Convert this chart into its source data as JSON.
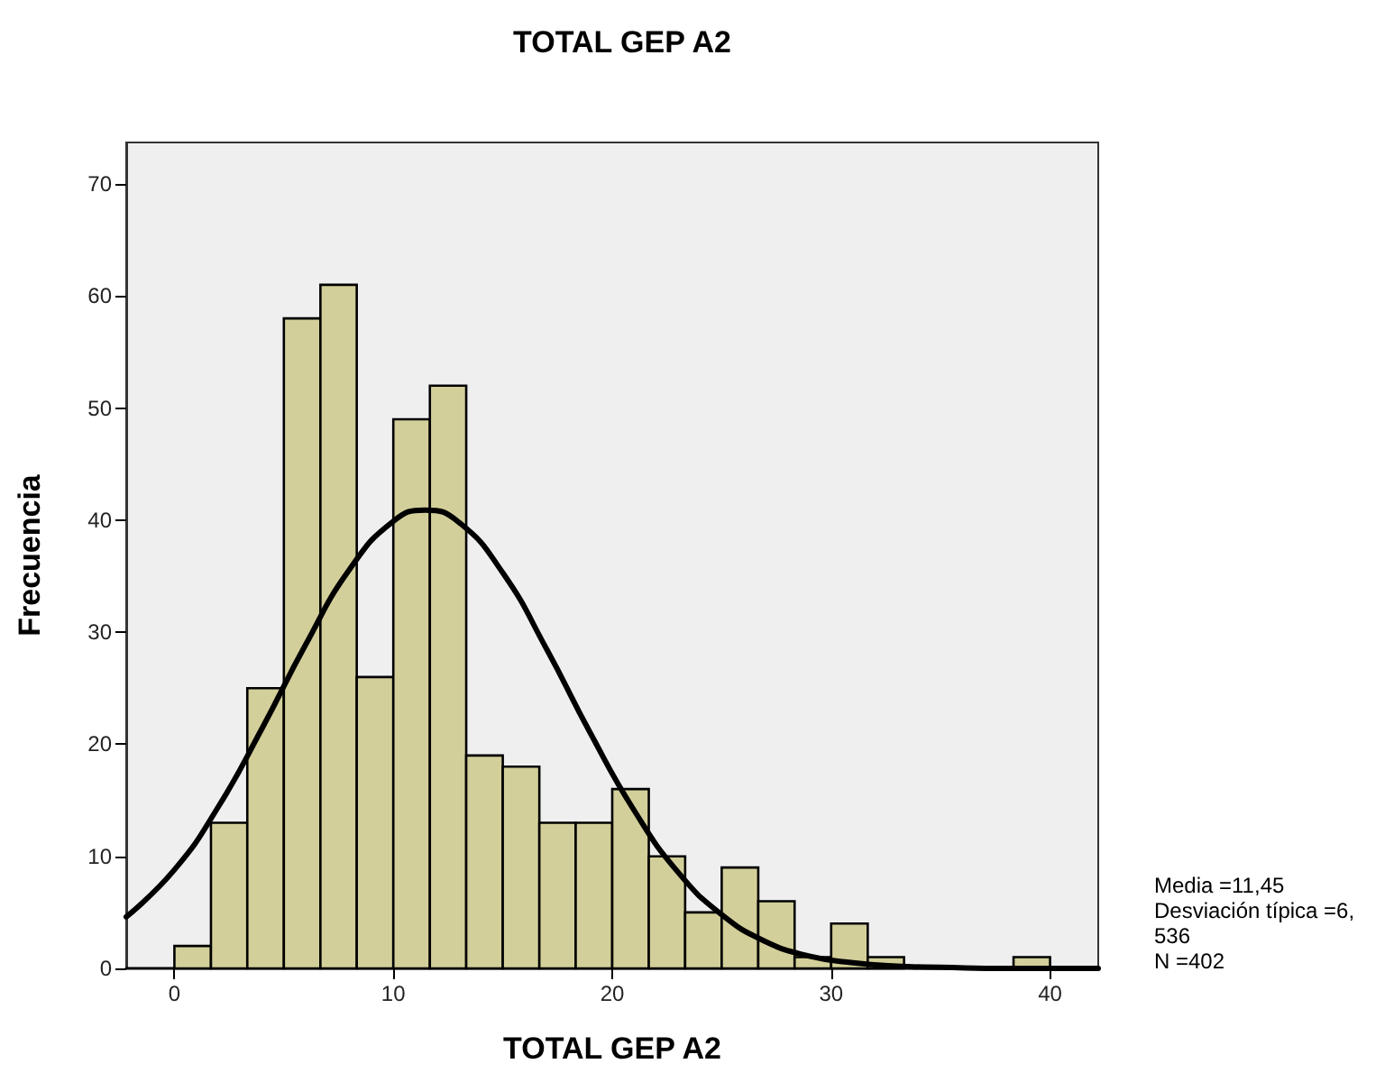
{
  "chart_data": {
    "type": "histogram",
    "title": "TOTAL GEP A2",
    "xlabel": "TOTAL GEP A2",
    "ylabel": "Frecuencia",
    "bins": [
      0,
      1.67,
      3.33,
      5,
      6.67,
      8.33,
      10,
      11.67,
      13.33,
      15,
      16.67,
      18.33,
      20,
      21.67,
      23.33,
      25,
      26.67,
      28.33,
      30,
      31.67,
      33.33,
      35,
      36.67,
      38.33,
      40
    ],
    "series": [
      {
        "color": "#d3cf9a",
        "values": [
          2,
          13,
          25,
          58,
          61,
          26,
          49,
          52,
          19,
          18,
          13,
          13,
          16,
          10,
          5,
          9,
          6,
          1,
          4,
          1,
          0,
          0,
          0,
          1
        ]
      },
      {
        "type": "line",
        "color": "#000000",
        "x": [
          -2.2,
          0,
          2,
          4,
          6,
          8,
          10,
          11.45,
          13,
          15,
          17,
          19,
          21,
          23,
          25,
          27,
          29,
          31,
          33,
          35,
          38,
          42.2
        ],
        "values": [
          4.6,
          8.8,
          14.4,
          21.4,
          28.9,
          35.6,
          39.9,
          40.9,
          39.8,
          35.3,
          28.5,
          21.0,
          14.1,
          8.6,
          4.8,
          2.4,
          1.1,
          0.5,
          0.2,
          0.1,
          0,
          0
        ]
      }
    ],
    "xlim": [
      -2.2,
      42.2
    ],
    "xticks": [
      0,
      10,
      20,
      30,
      40
    ],
    "ylim": [
      0,
      73.7
    ],
    "yticks": [
      0,
      10,
      20,
      30,
      40,
      50,
      60,
      70
    ],
    "grid": false,
    "marker": "none",
    "line_style": "solid",
    "annotations": [
      "Media =11,45",
      "Desviación típica =6,536",
      "N =402"
    ]
  }
}
